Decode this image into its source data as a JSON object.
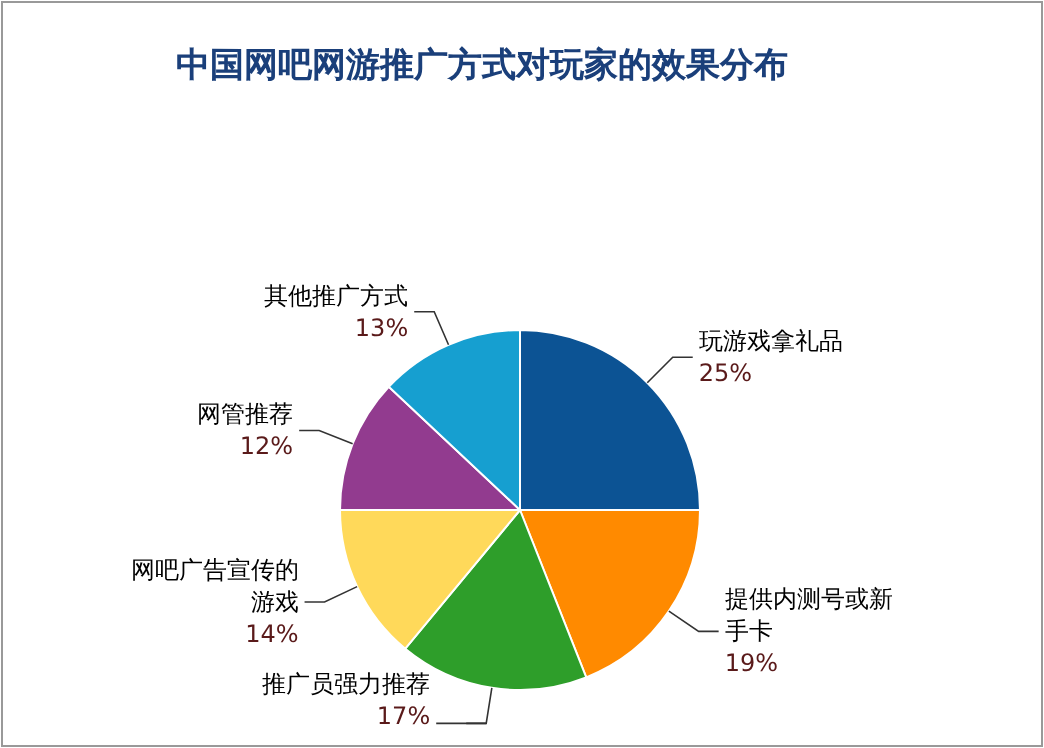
{
  "chart_data": {
    "type": "pie",
    "title": "中国网吧网游推广方式对玩家的效果分布",
    "categories": [
      "玩游戏拿礼品",
      "提供内测号或新手卡",
      "推广员强力推荐",
      "网吧广告宣传的游戏",
      "网管推荐",
      "其他推广方式"
    ],
    "values": [
      25,
      19,
      17,
      14,
      12,
      13
    ],
    "colors": [
      "#0c5394",
      "#ff8a00",
      "#2e9e2a",
      "#ffd95a",
      "#923b8f",
      "#169fd0"
    ],
    "value_labels": [
      "25%",
      "19%",
      "17%",
      "14%",
      "12%",
      "13%"
    ]
  }
}
